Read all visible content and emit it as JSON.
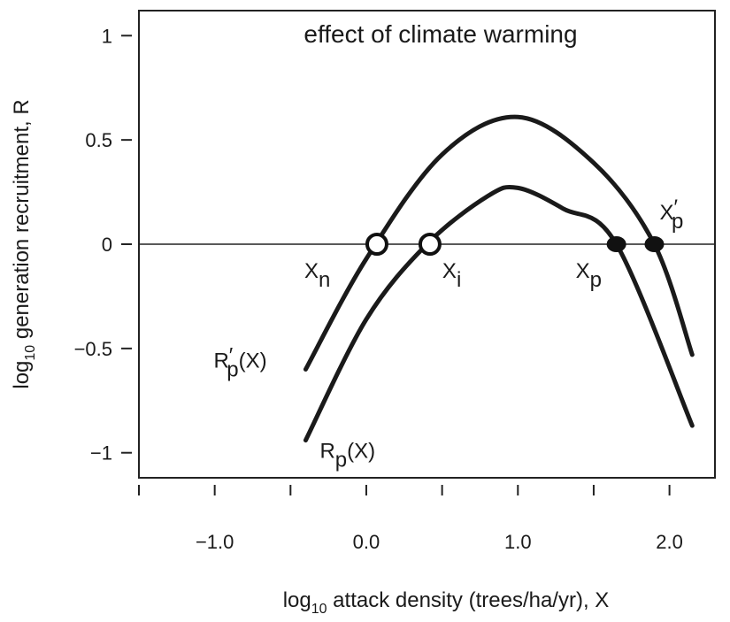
{
  "chart_data": {
    "type": "line",
    "title": "effect of climate warming",
    "xlabel": {
      "prefix": "log",
      "sub": "10",
      "rest": " attack density (trees/ha/yr), X"
    },
    "ylabel": {
      "prefix": "log",
      "sub": "10",
      "rest": " generation recruitment, R"
    },
    "xlim": [
      -1.5,
      2.3
    ],
    "ylim": [
      -1.12,
      1.12
    ],
    "x_ticks": [
      -1.5,
      -1.0,
      -0.5,
      0.0,
      0.5,
      1.0,
      1.5,
      2.0
    ],
    "x_tick_labels": [
      {
        "value": -1.0,
        "label": "−1.0"
      },
      {
        "value": 0.0,
        "label": "0.0"
      },
      {
        "value": 1.0,
        "label": "1.0"
      },
      {
        "value": 2.0,
        "label": "2.0"
      }
    ],
    "y_ticks": [
      {
        "value": 1,
        "label": "1"
      },
      {
        "value": 0.5,
        "label": "0.5"
      },
      {
        "value": 0,
        "label": "0"
      },
      {
        "value": -0.5,
        "label": "−0.5"
      },
      {
        "value": -1,
        "label": "−1"
      }
    ],
    "reference_line_y": 0,
    "grid": false,
    "series": [
      {
        "name": "R′p(X)",
        "label": {
          "main": "R",
          "prime": "′",
          "sub": "p",
          "rest": "(X)"
        },
        "x": [
          -0.4,
          0.0,
          0.5,
          1.0,
          1.5,
          1.9,
          2.15
        ],
        "y": [
          -0.6,
          -0.07,
          0.43,
          0.61,
          0.39,
          0.0,
          -0.53
        ]
      },
      {
        "name": "Rp(X)",
        "label": {
          "main": "R",
          "prime": "",
          "sub": "p",
          "rest": "(X)"
        },
        "x": [
          -0.4,
          0.0,
          0.4,
          0.8,
          1.0,
          1.3,
          1.65,
          2.15
        ],
        "y": [
          -0.94,
          -0.36,
          0.0,
          0.23,
          0.27,
          0.17,
          0.0,
          -0.87
        ]
      }
    ],
    "equilibria": [
      {
        "name": "Xn",
        "label": {
          "main": "X",
          "prime": "",
          "sub": "n"
        },
        "x": 0.07,
        "y": 0,
        "style": "open"
      },
      {
        "name": "Xi",
        "label": {
          "main": "X",
          "prime": "",
          "sub": "i"
        },
        "x": 0.42,
        "y": 0,
        "style": "open"
      },
      {
        "name": "Xp",
        "label": {
          "main": "X",
          "prime": "",
          "sub": "p"
        },
        "x": 1.65,
        "y": 0,
        "style": "filled"
      },
      {
        "name": "X′p",
        "label": {
          "main": "X",
          "prime": "′",
          "sub": "p"
        },
        "x": 1.9,
        "y": 0,
        "style": "filled"
      }
    ]
  }
}
